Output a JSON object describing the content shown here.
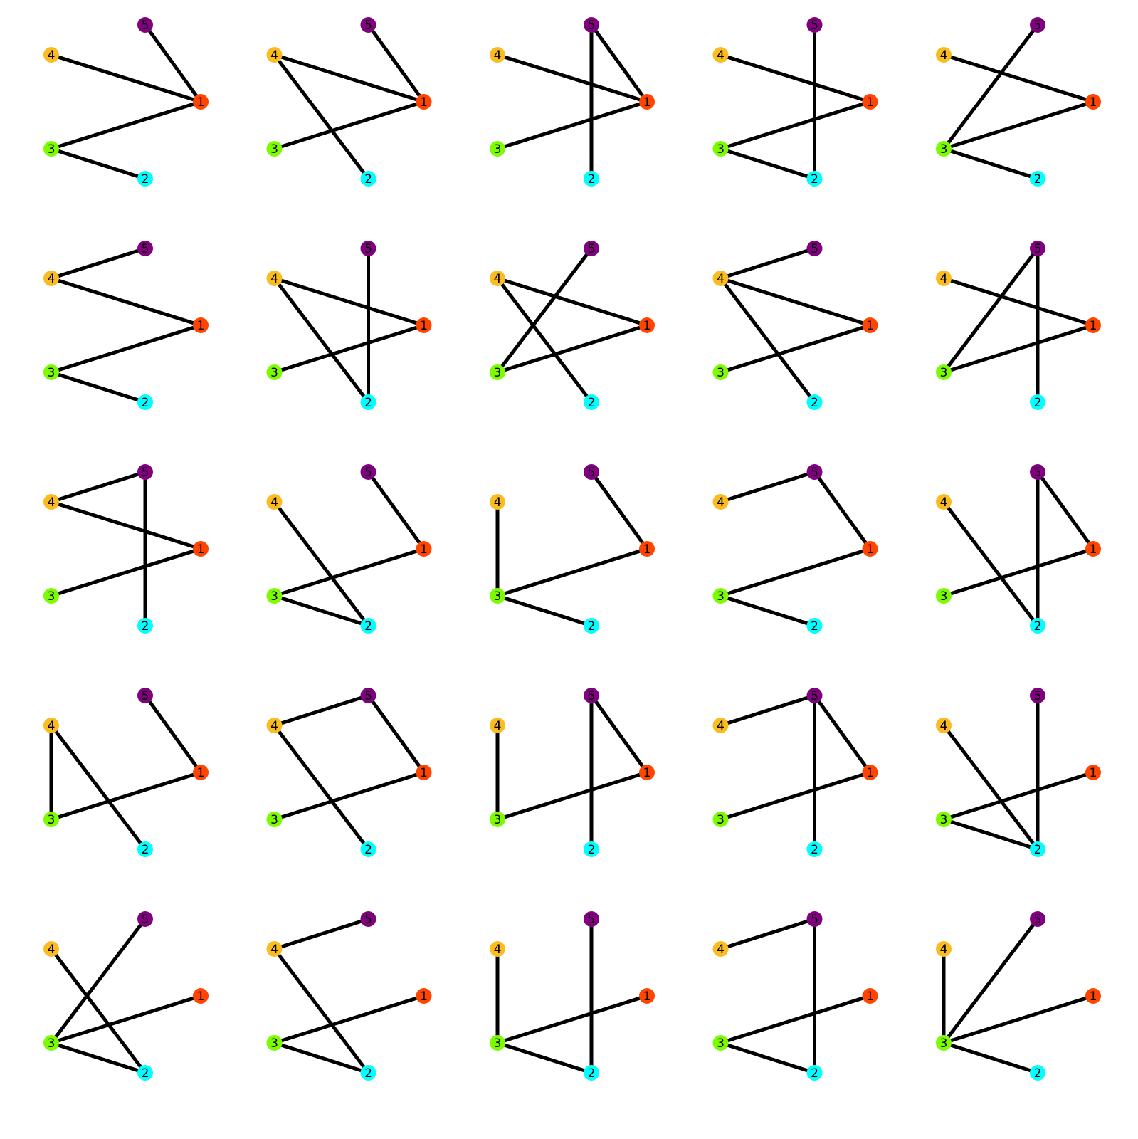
{
  "nodes": [
    {
      "id": 1,
      "label": "1",
      "color": "#ff4500"
    },
    {
      "id": 2,
      "label": "2",
      "color": "#00ffff"
    },
    {
      "id": 3,
      "label": "3",
      "color": "#7cfc00"
    },
    {
      "id": 4,
      "label": "4",
      "color": "#fbbc22"
    },
    {
      "id": 5,
      "label": "5",
      "color": "#800080"
    }
  ],
  "graphs": [
    {
      "edges": [
        [
          5,
          1
        ],
        [
          4,
          1
        ],
        [
          3,
          1
        ],
        [
          3,
          2
        ]
      ]
    },
    {
      "edges": [
        [
          5,
          1
        ],
        [
          4,
          1
        ],
        [
          4,
          2
        ],
        [
          3,
          1
        ]
      ]
    },
    {
      "edges": [
        [
          5,
          1
        ],
        [
          5,
          2
        ],
        [
          4,
          1
        ],
        [
          3,
          1
        ]
      ]
    },
    {
      "edges": [
        [
          5,
          2
        ],
        [
          4,
          1
        ],
        [
          3,
          1
        ],
        [
          3,
          2
        ]
      ]
    },
    {
      "edges": [
        [
          5,
          3
        ],
        [
          4,
          1
        ],
        [
          3,
          1
        ],
        [
          3,
          2
        ]
      ]
    },
    {
      "edges": [
        [
          5,
          4
        ],
        [
          4,
          1
        ],
        [
          3,
          1
        ],
        [
          3,
          2
        ]
      ]
    },
    {
      "edges": [
        [
          5,
          2
        ],
        [
          4,
          1
        ],
        [
          4,
          2
        ],
        [
          3,
          1
        ]
      ]
    },
    {
      "edges": [
        [
          5,
          3
        ],
        [
          4,
          1
        ],
        [
          4,
          2
        ],
        [
          3,
          1
        ]
      ]
    },
    {
      "edges": [
        [
          5,
          4
        ],
        [
          4,
          1
        ],
        [
          4,
          2
        ],
        [
          3,
          1
        ]
      ]
    },
    {
      "edges": [
        [
          5,
          3
        ],
        [
          5,
          2
        ],
        [
          4,
          1
        ],
        [
          3,
          1
        ]
      ]
    },
    {
      "edges": [
        [
          5,
          4
        ],
        [
          5,
          2
        ],
        [
          4,
          1
        ],
        [
          3,
          1
        ]
      ]
    },
    {
      "edges": [
        [
          5,
          1
        ],
        [
          4,
          2
        ],
        [
          3,
          1
        ],
        [
          3,
          2
        ]
      ]
    },
    {
      "edges": [
        [
          5,
          1
        ],
        [
          4,
          3
        ],
        [
          3,
          1
        ],
        [
          3,
          2
        ]
      ]
    },
    {
      "edges": [
        [
          5,
          4
        ],
        [
          5,
          1
        ],
        [
          3,
          1
        ],
        [
          3,
          2
        ]
      ]
    },
    {
      "edges": [
        [
          5,
          1
        ],
        [
          5,
          2
        ],
        [
          4,
          2
        ],
        [
          3,
          1
        ]
      ]
    },
    {
      "edges": [
        [
          5,
          1
        ],
        [
          4,
          3
        ],
        [
          4,
          2
        ],
        [
          3,
          1
        ]
      ]
    },
    {
      "edges": [
        [
          5,
          4
        ],
        [
          5,
          1
        ],
        [
          4,
          2
        ],
        [
          3,
          1
        ]
      ]
    },
    {
      "edges": [
        [
          5,
          1
        ],
        [
          5,
          2
        ],
        [
          4,
          3
        ],
        [
          3,
          1
        ]
      ]
    },
    {
      "edges": [
        [
          5,
          4
        ],
        [
          5,
          1
        ],
        [
          5,
          2
        ],
        [
          3,
          1
        ]
      ]
    },
    {
      "edges": [
        [
          5,
          2
        ],
        [
          4,
          2
        ],
        [
          3,
          1
        ],
        [
          3,
          2
        ]
      ]
    },
    {
      "edges": [
        [
          5,
          3
        ],
        [
          4,
          2
        ],
        [
          3,
          1
        ],
        [
          3,
          2
        ]
      ]
    },
    {
      "edges": [
        [
          5,
          4
        ],
        [
          4,
          2
        ],
        [
          3,
          1
        ],
        [
          3,
          2
        ]
      ]
    },
    {
      "edges": [
        [
          5,
          2
        ],
        [
          4,
          3
        ],
        [
          3,
          1
        ],
        [
          3,
          2
        ]
      ]
    },
    {
      "edges": [
        [
          5,
          4
        ],
        [
          5,
          2
        ],
        [
          3,
          1
        ],
        [
          3,
          2
        ]
      ]
    },
    {
      "edges": [
        [
          5,
          3
        ],
        [
          4,
          3
        ],
        [
          3,
          1
        ],
        [
          3,
          2
        ]
      ]
    }
  ]
}
